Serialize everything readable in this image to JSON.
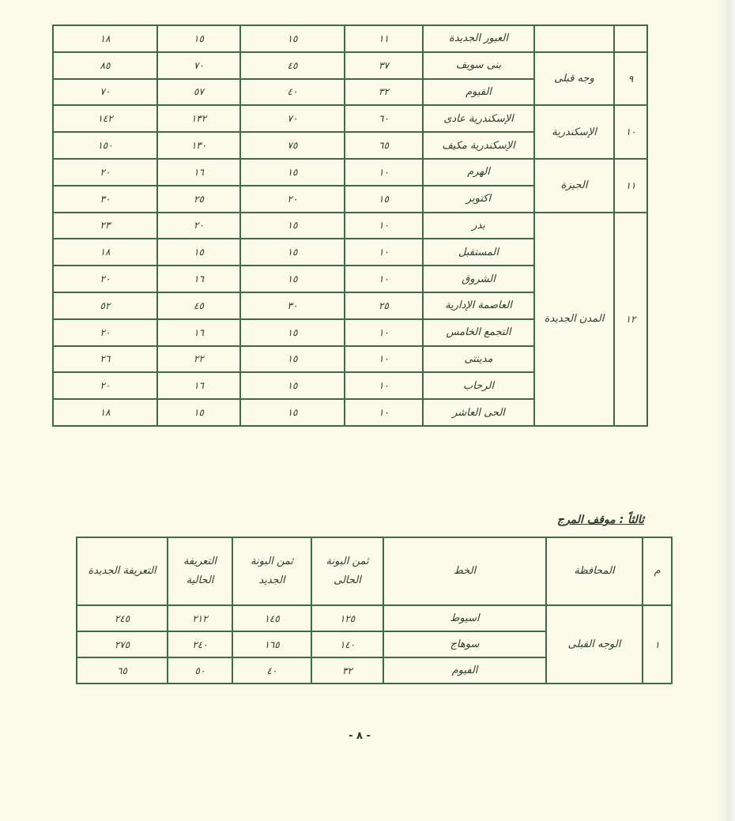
{
  "top_table": {
    "rows": [
      {
        "num": "",
        "governorate": "",
        "line": "العبور الجديدة",
        "c1": "١١",
        "c2": "١٥",
        "c3": "١٥",
        "c4": "١٨"
      },
      {
        "num": "٩",
        "governorate": "وجه قبلى",
        "span": 2,
        "line": "بنى سويف",
        "c1": "٣٧",
        "c2": "٤٥",
        "c3": "٧٠",
        "c4": "٨٥"
      },
      {
        "line": "الفيوم",
        "c1": "٣٢",
        "c2": "٤٠",
        "c3": "٥٧",
        "c4": "٧٠"
      },
      {
        "num": "١٠",
        "governorate": "الإسكندرية",
        "span": 2,
        "line": "الإسكندرية عادى",
        "c1": "٦٠",
        "c2": "٧٠",
        "c3": "١٣٢",
        "c4": "١٤٢"
      },
      {
        "line": "الإسكندرية مكيف",
        "c1": "٦٥",
        "c2": "٧٥",
        "c3": "١٣٠",
        "c4": "١٥٠"
      },
      {
        "num": "١١",
        "governorate": "الجيزة",
        "span": 2,
        "line": "الهرم",
        "c1": "١٠",
        "c2": "١٥",
        "c3": "١٦",
        "c4": "٢٠"
      },
      {
        "line": "اكتوبر",
        "c1": "١٥",
        "c2": "٢٠",
        "c3": "٢٥",
        "c4": "٣٠"
      },
      {
        "num": "١٢",
        "governorate": "المدن الجديدة",
        "span": 8,
        "line": "بدر",
        "c1": "١٠",
        "c2": "١٥",
        "c3": "٢٠",
        "c4": "٢٣"
      },
      {
        "line": "المستقبل",
        "c1": "١٠",
        "c2": "١٥",
        "c3": "١٥",
        "c4": "١٨"
      },
      {
        "line": "الشروق",
        "c1": "١٠",
        "c2": "١٥",
        "c3": "١٦",
        "c4": "٢٠"
      },
      {
        "line": "العاصمة الإدارية",
        "c1": "٢٥",
        "c2": "٣٠",
        "c3": "٤٥",
        "c4": "٥٢"
      },
      {
        "line": "التجمع الخامس",
        "c1": "١٠",
        "c2": "١٥",
        "c3": "١٦",
        "c4": "٢٠"
      },
      {
        "line": "مدينتى",
        "c1": "١٠",
        "c2": "١٥",
        "c3": "٢٢",
        "c4": "٢٦"
      },
      {
        "line": "الرحاب",
        "c1": "١٠",
        "c2": "١٥",
        "c3": "١٦",
        "c4": "٢٠"
      },
      {
        "line": "الحى العاشر",
        "c1": "١٠",
        "c2": "١٥",
        "c3": "١٥",
        "c4": "١٨"
      }
    ]
  },
  "section_title": "ثالثاً : موقف المرج",
  "bottom_table": {
    "headers": {
      "num": "م",
      "governorate": "المحافظة",
      "line": "الخط",
      "c1": "ثمن البونة الحالى",
      "c2": "ثمن البونة الجديد",
      "c3": "التعريفة الحالية",
      "c4": "التعريفة الجديدة"
    },
    "rows": [
      {
        "num": "١",
        "governorate": "الوجه القبلى",
        "span": 3,
        "line": "اسيوط",
        "c1": "١٢٥",
        "c2": "١٤٥",
        "c3": "٢١٢",
        "c4": "٢٤٥"
      },
      {
        "line": "سوهاج",
        "c1": "١٤٠",
        "c2": "١٦٥",
        "c3": "٢٤٠",
        "c4": "٢٧٥"
      },
      {
        "line": "الفيوم",
        "c1": "٣٢",
        "c2": "٤٠",
        "c3": "٥٠",
        "c4": "٦٥"
      }
    ]
  },
  "page_number": "- ٨ -"
}
